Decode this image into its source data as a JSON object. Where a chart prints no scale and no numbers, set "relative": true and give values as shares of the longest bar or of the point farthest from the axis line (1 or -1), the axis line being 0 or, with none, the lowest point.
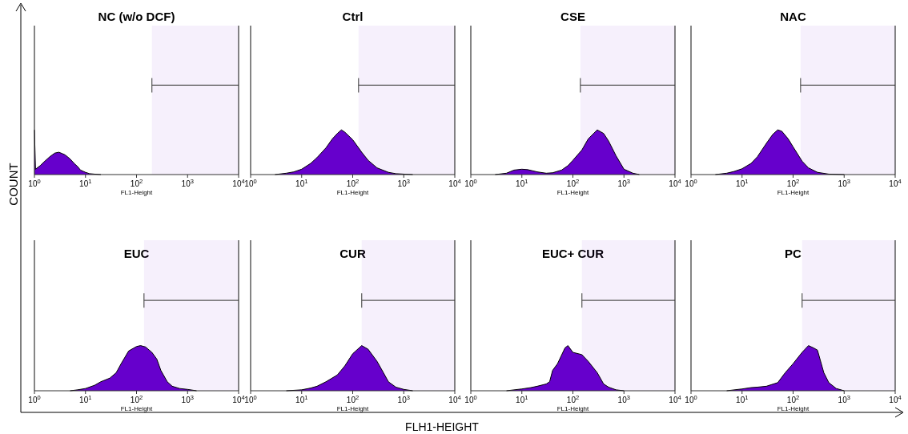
{
  "chart_data": [
    {
      "type": "area",
      "title": "NC (w/o DCF)",
      "xlabel": "FL1-Height",
      "log": "x",
      "relative": true,
      "color": "#6600cc",
      "xlim": [
        1,
        10000
      ],
      "xticks": [
        {
          "value": 1,
          "label": "10$^{0}$"
        },
        {
          "value": 10,
          "label": "10$^{1}$"
        },
        {
          "value": 100,
          "label": "10$^{2}$"
        },
        {
          "value": 1000,
          "label": "10$^{3}$"
        },
        {
          "value": 10000,
          "label": "10$^{4}$"
        }
      ],
      "bands": [
        {
          "axis": "x",
          "from": 200,
          "to": 10000
        }
      ],
      "annotations": [
        "COUNT",
        "FLH1-HEIGHT"
      ],
      "x": [
        1,
        1.05,
        1.3,
        1.6,
        2,
        2.5,
        3,
        3.5,
        4,
        5,
        6,
        7,
        8,
        10,
        12,
        15,
        20
      ],
      "values": [
        1,
        0.12,
        0.2,
        0.3,
        0.4,
        0.48,
        0.5,
        0.47,
        0.44,
        0.35,
        0.25,
        0.18,
        0.1,
        0.05,
        0.02,
        0.01,
        0
      ]
    },
    {
      "type": "area",
      "title": "Ctrl",
      "xlabel": "FL1-Height",
      "log": "x",
      "relative": true,
      "color": "#6600cc",
      "xlim": [
        1,
        10000
      ],
      "xticks": [
        {
          "value": 1,
          "label": "10$^{0}$"
        },
        {
          "value": 10,
          "label": "10$^{1}$"
        },
        {
          "value": 100,
          "label": "10$^{2}$"
        },
        {
          "value": 1000,
          "label": "10$^{3}$"
        },
        {
          "value": 10000,
          "label": "10$^{4}$"
        }
      ],
      "bands": [
        {
          "axis": "x",
          "from": 130,
          "to": 10000
        }
      ],
      "x": [
        3,
        5,
        7,
        10,
        15,
        20,
        30,
        40,
        50,
        60,
        70,
        100,
        150,
        200,
        300,
        500,
        700,
        1000,
        1500
      ],
      "values": [
        0,
        0.03,
        0.06,
        0.12,
        0.25,
        0.38,
        0.6,
        0.8,
        0.92,
        1,
        0.95,
        0.78,
        0.5,
        0.32,
        0.15,
        0.05,
        0.02,
        0.01,
        0
      ]
    },
    {
      "type": "area",
      "title": "CSE",
      "xlabel": "FL1-Height",
      "log": "x",
      "relative": true,
      "color": "#6600cc",
      "xlim": [
        1,
        10000
      ],
      "xticks": [
        {
          "value": 1,
          "label": "10$^{0}$"
        },
        {
          "value": 10,
          "label": "10$^{1}$"
        },
        {
          "value": 100,
          "label": "10$^{2}$"
        },
        {
          "value": 1000,
          "label": "10$^{3}$"
        },
        {
          "value": 10000,
          "label": "10$^{4}$"
        }
      ],
      "bands": [
        {
          "axis": "x",
          "from": 140,
          "to": 10000
        }
      ],
      "x": [
        3,
        5,
        7,
        10,
        13,
        20,
        30,
        40,
        60,
        80,
        100,
        150,
        200,
        300,
        400,
        500,
        700,
        1000,
        1500,
        2000
      ],
      "values": [
        0,
        0.03,
        0.1,
        0.12,
        0.11,
        0.06,
        0.03,
        0.04,
        0.1,
        0.2,
        0.32,
        0.55,
        0.8,
        1,
        0.92,
        0.75,
        0.42,
        0.12,
        0.03,
        0
      ]
    },
    {
      "type": "area",
      "title": "NAC",
      "xlabel": "FL1-Height",
      "log": "x",
      "relative": true,
      "color": "#6600cc",
      "xlim": [
        1,
        10000
      ],
      "xticks": [
        {
          "value": 1,
          "label": "10$^{0}$"
        },
        {
          "value": 10,
          "label": "10$^{1}$"
        },
        {
          "value": 100,
          "label": "10$^{2}$"
        },
        {
          "value": 1000,
          "label": "10$^{3}$"
        },
        {
          "value": 10000,
          "label": "10$^{4}$"
        }
      ],
      "bands": [
        {
          "axis": "x",
          "from": 140,
          "to": 10000
        }
      ],
      "x": [
        3,
        5,
        7,
        10,
        15,
        20,
        30,
        40,
        50,
        60,
        80,
        100,
        150,
        200,
        300,
        500,
        1000
      ],
      "values": [
        0,
        0.03,
        0.07,
        0.13,
        0.25,
        0.4,
        0.7,
        0.9,
        1,
        0.97,
        0.8,
        0.62,
        0.3,
        0.15,
        0.05,
        0.01,
        0
      ]
    },
    {
      "type": "area",
      "title": "EUC",
      "xlabel": "FL1-Height",
      "log": "x",
      "relative": true,
      "color": "#6600cc",
      "xlim": [
        1,
        10000
      ],
      "xticks": [
        {
          "value": 1,
          "label": "10$^{0}$"
        },
        {
          "value": 10,
          "label": "10$^{1}$"
        },
        {
          "value": 100,
          "label": "10$^{2}$"
        },
        {
          "value": 1000,
          "label": "10$^{3}$"
        },
        {
          "value": 10000,
          "label": "10$^{4}$"
        }
      ],
      "bands": [
        {
          "axis": "x",
          "from": 140,
          "to": 10000
        }
      ],
      "x": [
        5,
        7,
        10,
        15,
        20,
        30,
        40,
        50,
        70,
        100,
        120,
        150,
        200,
        250,
        300,
        400,
        500,
        700,
        1000,
        1500
      ],
      "values": [
        0,
        0.02,
        0.05,
        0.12,
        0.2,
        0.28,
        0.4,
        0.6,
        0.88,
        0.98,
        1,
        0.97,
        0.85,
        0.7,
        0.45,
        0.2,
        0.1,
        0.05,
        0.03,
        0
      ]
    },
    {
      "type": "area",
      "title": "CUR",
      "xlabel": "FL1-Height",
      "log": "x",
      "relative": true,
      "color": "#6600cc",
      "xlim": [
        1,
        10000
      ],
      "xticks": [
        {
          "value": 1,
          "label": "10$^{0}$"
        },
        {
          "value": 10,
          "label": "10$^{1}$"
        },
        {
          "value": 100,
          "label": "10$^{2}$"
        },
        {
          "value": 1000,
          "label": "10$^{3}$"
        },
        {
          "value": 10000,
          "label": "10$^{4}$"
        }
      ],
      "bands": [
        {
          "axis": "x",
          "from": 150,
          "to": 10000
        }
      ],
      "x": [
        5,
        10,
        15,
        20,
        30,
        50,
        70,
        100,
        150,
        200,
        300,
        400,
        500,
        700,
        1000,
        1500
      ],
      "values": [
        0,
        0.02,
        0.06,
        0.1,
        0.2,
        0.35,
        0.55,
        0.82,
        1,
        0.92,
        0.65,
        0.4,
        0.2,
        0.08,
        0.03,
        0
      ]
    },
    {
      "type": "area",
      "title": "EUC+ CUR",
      "xlabel": "FL1-Height",
      "log": "x",
      "relative": true,
      "color": "#6600cc",
      "xlim": [
        1,
        10000
      ],
      "xticks": [
        {
          "value": 1,
          "label": "10$^{0}$"
        },
        {
          "value": 10,
          "label": "10$^{1}$"
        },
        {
          "value": 100,
          "label": "10$^{2}$"
        },
        {
          "value": 1000,
          "label": "10$^{3}$"
        },
        {
          "value": 10000,
          "label": "10$^{4}$"
        }
      ],
      "bands": [
        {
          "axis": "x",
          "from": 150,
          "to": 10000
        }
      ],
      "x": [
        5,
        10,
        15,
        20,
        30,
        35,
        40,
        50,
        70,
        80,
        100,
        150,
        200,
        300,
        400,
        500,
        700,
        1000
      ],
      "values": [
        0,
        0.04,
        0.07,
        0.1,
        0.15,
        0.2,
        0.45,
        0.6,
        0.95,
        1,
        0.85,
        0.8,
        0.65,
        0.4,
        0.15,
        0.08,
        0.02,
        0
      ]
    },
    {
      "type": "area",
      "title": "PC",
      "xlabel": "FL1-Height",
      "log": "x",
      "relative": true,
      "color": "#6600cc",
      "xlim": [
        1,
        10000
      ],
      "xticks": [
        {
          "value": 1,
          "label": "10$^{0}$"
        },
        {
          "value": 10,
          "label": "10$^{1}$"
        },
        {
          "value": 100,
          "label": "10$^{2}$"
        },
        {
          "value": 1000,
          "label": "10$^{3}$"
        },
        {
          "value": 10000,
          "label": "10$^{4}$"
        }
      ],
      "bands": [
        {
          "axis": "x",
          "from": 150,
          "to": 10000
        }
      ],
      "x": [
        5,
        10,
        15,
        20,
        30,
        50,
        70,
        100,
        150,
        200,
        250,
        300,
        400,
        500,
        700,
        1000
      ],
      "values": [
        0,
        0.04,
        0.07,
        0.08,
        0.1,
        0.18,
        0.4,
        0.6,
        0.85,
        1,
        0.95,
        0.9,
        0.4,
        0.18,
        0.05,
        0
      ]
    }
  ]
}
